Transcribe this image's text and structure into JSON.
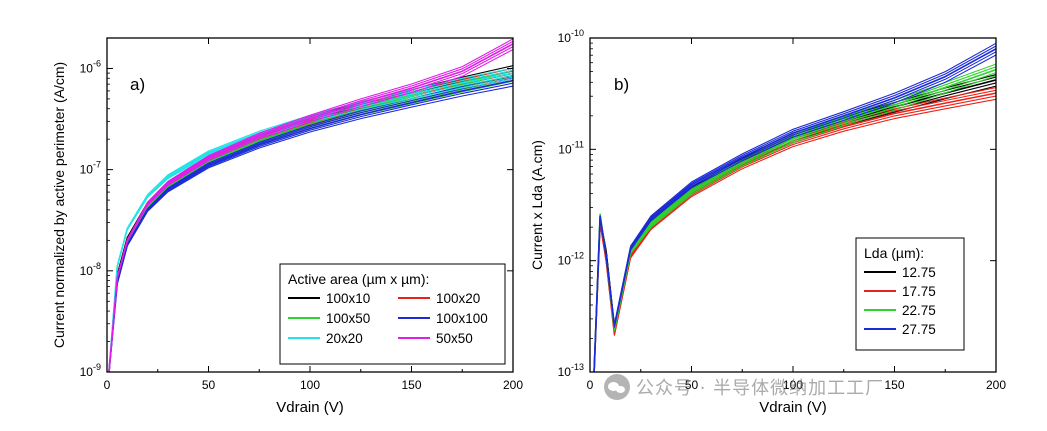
{
  "chart_data": [
    {
      "type": "line",
      "panel_label": "a)",
      "xlabel": "Vdrain (V)",
      "ylabel": "Current normalized by active perimeter (A/cm)",
      "xlim": [
        0,
        200
      ],
      "ylim": [
        1e-09,
        2e-06
      ],
      "y_scale": "log",
      "x_ticks": [
        "0",
        "50",
        "100",
        "150",
        "200"
      ],
      "y_ticks": [
        {
          "base": "10",
          "exp": "-9"
        },
        {
          "base": "10",
          "exp": "-8"
        },
        {
          "base": "10",
          "exp": "-7"
        },
        {
          "base": "10",
          "exp": "-6"
        }
      ],
      "legend": {
        "title": "Active area (µm x µm):",
        "placement": "lower-right",
        "columns": 2
      },
      "series": [
        {
          "name": "100x10",
          "color": "#000000",
          "x": [
            1,
            5,
            10,
            20,
            30,
            50,
            75,
            100,
            125,
            150,
            175,
            200
          ],
          "y": [
            1e-09,
            9e-09,
            2.1e-08,
            4.6e-08,
            7.3e-08,
            1.3e-07,
            2.1e-07,
            3.1e-07,
            4.3e-07,
            5.6e-07,
            7.4e-07,
            9.5e-07
          ]
        },
        {
          "name": "100x20",
          "color": "#e8231c",
          "x": [
            1,
            5,
            10,
            20,
            30,
            50,
            75,
            100,
            125,
            150,
            175,
            200
          ],
          "y": [
            1e-09,
            8.5e-09,
            2e-08,
            4.5e-08,
            7e-08,
            1.25e-07,
            2e-07,
            2.9e-07,
            4e-07,
            5.3e-07,
            7e-07,
            9e-07
          ]
        },
        {
          "name": "100x50",
          "color": "#2fd22f",
          "x": [
            1,
            5,
            10,
            20,
            30,
            50,
            75,
            100,
            125,
            150,
            175,
            200
          ],
          "y": [
            1e-09,
            8e-09,
            1.95e-08,
            4.4e-08,
            6.8e-08,
            1.2e-07,
            1.9e-07,
            2.75e-07,
            3.8e-07,
            5e-07,
            6.6e-07,
            8.5e-07
          ]
        },
        {
          "name": "100x100",
          "color": "#1c2bd6",
          "x": [
            1,
            5,
            10,
            20,
            30,
            50,
            75,
            100,
            125,
            150,
            175,
            200
          ],
          "y": [
            1e-09,
            7.5e-09,
            1.8e-08,
            4e-08,
            6.3e-08,
            1.1e-07,
            1.75e-07,
            2.55e-07,
            3.5e-07,
            4.6e-07,
            6e-07,
            7.6e-07
          ]
        },
        {
          "name": "20x20",
          "color": "#22e3e8",
          "x": [
            1,
            5,
            10,
            20,
            30,
            50,
            75,
            100,
            125,
            150,
            175,
            200
          ],
          "y": [
            1e-09,
            1.1e-08,
            2.6e-08,
            5.5e-08,
            8.5e-08,
            1.45e-07,
            2.25e-07,
            3.2e-07,
            4.3e-07,
            5.6e-07,
            7.2e-07,
            9e-07
          ]
        },
        {
          "name": "50x50",
          "color": "#e01ee8",
          "x": [
            1,
            5,
            10,
            20,
            30,
            50,
            75,
            100,
            125,
            150,
            175,
            200
          ],
          "y": [
            1e-09,
            8.5e-09,
            2e-08,
            4.6e-08,
            7.3e-08,
            1.3e-07,
            2.15e-07,
            3.2e-07,
            4.6e-07,
            6.4e-07,
            9.4e-07,
            1.75e-06
          ]
        }
      ]
    },
    {
      "type": "line",
      "panel_label": "b)",
      "xlabel": "Vdrain (V)",
      "ylabel": "Current x Lda (A.cm)",
      "xlim": [
        0,
        200
      ],
      "ylim": [
        1e-13,
        1e-10
      ],
      "y_scale": "log",
      "x_ticks": [
        "0",
        "50",
        "100",
        "150",
        "200"
      ],
      "y_ticks": [
        {
          "base": "10",
          "exp": "-13"
        },
        {
          "base": "10",
          "exp": "-12"
        },
        {
          "base": "10",
          "exp": "-11"
        },
        {
          "base": "10",
          "exp": "-10"
        }
      ],
      "legend": {
        "title": "Lda (µm):",
        "placement": "lower-right",
        "columns": 1
      },
      "series": [
        {
          "name": "12.75",
          "color": "#000000",
          "x": [
            2,
            5,
            8,
            12,
            20,
            30,
            50,
            75,
            100,
            125,
            150,
            175,
            200
          ],
          "y": [
            1e-13,
            2.4e-12,
            1.2e-12,
            2.5e-13,
            1.2e-12,
            2.2e-12,
            4.3e-12,
            7.8e-12,
            1.3e-11,
            1.8e-11,
            2.4e-11,
            3.2e-11,
            4.2e-11
          ]
        },
        {
          "name": "17.75",
          "color": "#e8231c",
          "x": [
            2,
            5,
            8,
            12,
            20,
            30,
            50,
            75,
            100,
            125,
            150,
            175,
            200
          ],
          "y": [
            1e-13,
            2.2e-12,
            1e-12,
            2.2e-13,
            1.1e-12,
            2e-12,
            4e-12,
            7.2e-12,
            1.15e-11,
            1.6e-11,
            2.1e-11,
            2.6e-11,
            3.2e-11
          ]
        },
        {
          "name": "22.75",
          "color": "#2fd22f",
          "x": [
            2,
            5,
            8,
            12,
            20,
            30,
            50,
            75,
            100,
            125,
            150,
            175,
            200
          ],
          "y": [
            1e-13,
            2.6e-12,
            1.1e-12,
            2.4e-13,
            1.2e-12,
            2.1e-12,
            4.2e-12,
            7.6e-12,
            1.25e-11,
            1.8e-11,
            2.5e-11,
            3.6e-11,
            5.2e-11
          ]
        },
        {
          "name": "27.75",
          "color": "#1c2bd6",
          "x": [
            2,
            5,
            8,
            12,
            20,
            30,
            50,
            75,
            100,
            125,
            150,
            175,
            200
          ],
          "y": [
            1e-13,
            2.5e-12,
            1.1e-12,
            2.6e-13,
            1.3e-12,
            2.4e-12,
            4.8e-12,
            8.5e-12,
            1.4e-11,
            2e-11,
            2.9e-11,
            4.5e-11,
            8e-11
          ]
        }
      ]
    }
  ],
  "watermark": {
    "icon": "wechat-logo-icon",
    "text": "公众号 · 半导体微纳加工工厂"
  }
}
